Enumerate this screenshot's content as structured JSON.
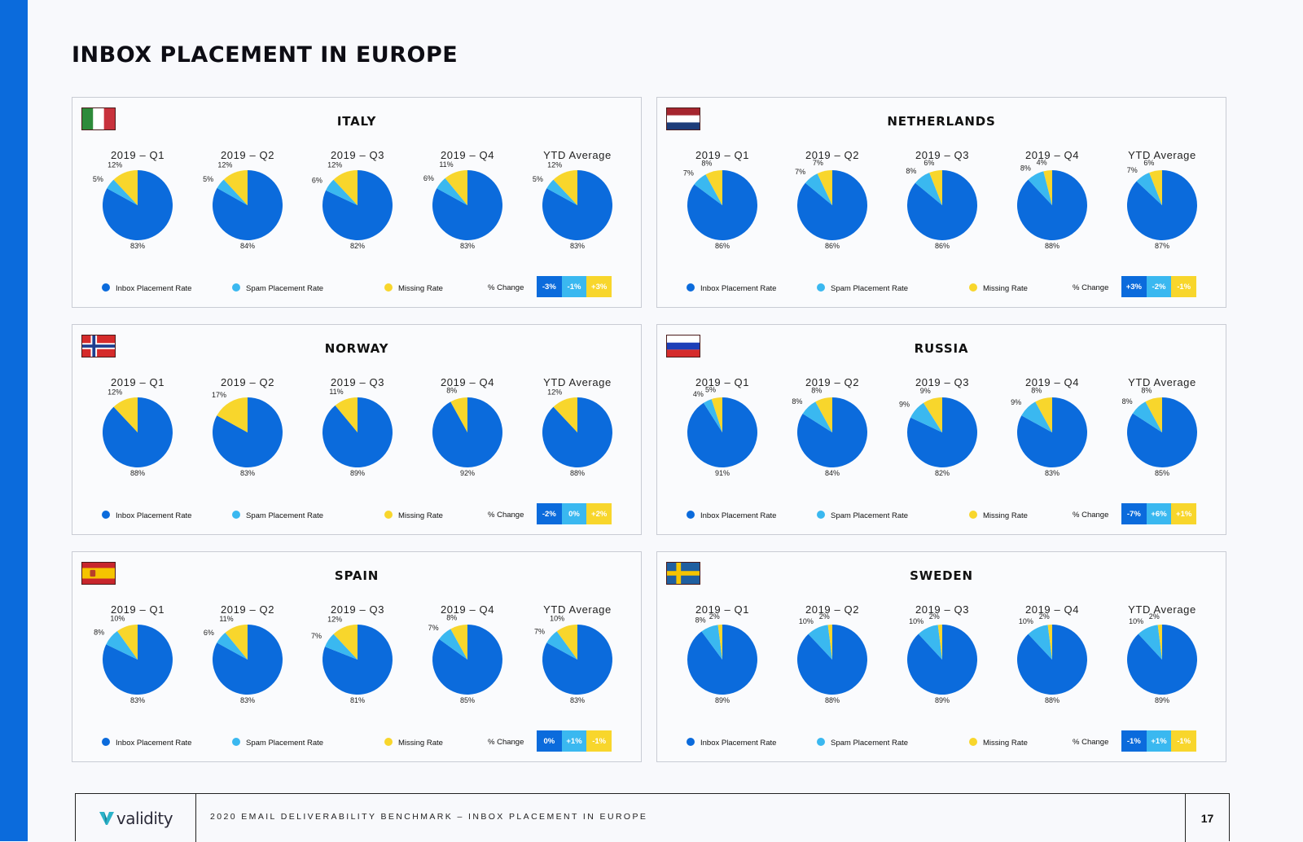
{
  "page": {
    "title": "INBOX PLACEMENT IN EUROPE",
    "page_number": "17"
  },
  "footer": {
    "logo_text": "validity",
    "text": "2020 EMAIL DELIVERABILITY BENCHMARK – INBOX PLACEMENT IN EUROPE"
  },
  "colors": {
    "inbox": "#0b6bdc",
    "spam": "#3ab8f0",
    "missing": "#f8d62c",
    "side_bar": "#0b6bdc"
  },
  "periods": [
    "2019 – Q1",
    "2019 – Q2",
    "2019 – Q3",
    "2019 – Q4",
    "YTD Average"
  ],
  "legend": {
    "inbox": "Inbox Placement Rate",
    "spam": "Spam Placement Rate",
    "missing": "Missing Rate",
    "change": "% Change"
  },
  "chart_data": [
    {
      "type": "pie",
      "title": "ITALY",
      "flag": "italy-flag",
      "categories": [
        "2019 – Q1",
        "2019 – Q2",
        "2019 – Q3",
        "2019 – Q4",
        "YTD Average"
      ],
      "series": [
        {
          "name": "Inbox Placement Rate",
          "values": [
            83,
            84,
            82,
            83,
            83
          ]
        },
        {
          "name": "Spam Placement Rate",
          "values": [
            5,
            5,
            6,
            6,
            5
          ]
        },
        {
          "name": "Missing Rate",
          "values": [
            12,
            12,
            12,
            11,
            12
          ]
        }
      ],
      "change": [
        "-3%",
        "-1%",
        "+3%"
      ]
    },
    {
      "type": "pie",
      "title": "NETHERLANDS",
      "flag": "netherlands-flag",
      "categories": [
        "2019 – Q1",
        "2019 – Q2",
        "2019 – Q3",
        "2019 – Q4",
        "YTD Average"
      ],
      "series": [
        {
          "name": "Inbox Placement Rate",
          "values": [
            86,
            86,
            86,
            88,
            87
          ]
        },
        {
          "name": "Spam Placement Rate",
          "values": [
            7,
            7,
            8,
            8,
            7
          ]
        },
        {
          "name": "Missing Rate",
          "values": [
            8,
            7,
            6,
            4,
            6
          ]
        }
      ],
      "change": [
        "+3%",
        "-2%",
        "-1%"
      ]
    },
    {
      "type": "pie",
      "title": "NORWAY",
      "flag": "norway-flag",
      "categories": [
        "2019 – Q1",
        "2019 – Q2",
        "2019 – Q3",
        "2019 – Q4",
        "YTD Average"
      ],
      "series": [
        {
          "name": "Inbox Placement Rate",
          "values": [
            88,
            83,
            89,
            92,
            88
          ]
        },
        {
          "name": "Spam Placement Rate",
          "values": [
            0,
            0,
            0,
            0,
            0
          ]
        },
        {
          "name": "Missing Rate",
          "values": [
            12,
            17,
            11,
            8,
            12
          ]
        }
      ],
      "change": [
        "-2%",
        "0%",
        "+2%"
      ]
    },
    {
      "type": "pie",
      "title": "RUSSIA",
      "flag": "russia-flag",
      "categories": [
        "2019 – Q1",
        "2019 – Q2",
        "2019 – Q3",
        "2019 – Q4",
        "YTD Average"
      ],
      "series": [
        {
          "name": "Inbox Placement Rate",
          "values": [
            91,
            84,
            82,
            83,
            85
          ]
        },
        {
          "name": "Spam Placement Rate",
          "values": [
            4,
            8,
            9,
            9,
            8
          ]
        },
        {
          "name": "Missing Rate",
          "values": [
            5,
            8,
            9,
            8,
            8
          ]
        }
      ],
      "change": [
        "-7%",
        "+6%",
        "+1%"
      ]
    },
    {
      "type": "pie",
      "title": "SPAIN",
      "flag": "spain-flag",
      "categories": [
        "2019 – Q1",
        "2019 – Q2",
        "2019 – Q3",
        "2019 – Q4",
        "YTD Average"
      ],
      "series": [
        {
          "name": "Inbox Placement Rate",
          "values": [
            83,
            83,
            81,
            85,
            83
          ]
        },
        {
          "name": "Spam Placement Rate",
          "values": [
            8,
            6,
            7,
            7,
            7
          ]
        },
        {
          "name": "Missing Rate",
          "values": [
            10,
            11,
            12,
            8,
            10
          ]
        }
      ],
      "change": [
        "0%",
        "+1%",
        "-1%"
      ]
    },
    {
      "type": "pie",
      "title": "SWEDEN",
      "flag": "sweden-flag",
      "categories": [
        "2019 – Q1",
        "2019 – Q2",
        "2019 – Q3",
        "2019 – Q4",
        "YTD Average"
      ],
      "series": [
        {
          "name": "Inbox Placement Rate",
          "values": [
            89,
            88,
            89,
            88,
            89
          ]
        },
        {
          "name": "Spam Placement Rate",
          "values": [
            8,
            10,
            10,
            10,
            10
          ]
        },
        {
          "name": "Missing Rate",
          "values": [
            2,
            2,
            2,
            2,
            2
          ]
        }
      ],
      "change": [
        "-1%",
        "+1%",
        "-1%"
      ]
    }
  ]
}
